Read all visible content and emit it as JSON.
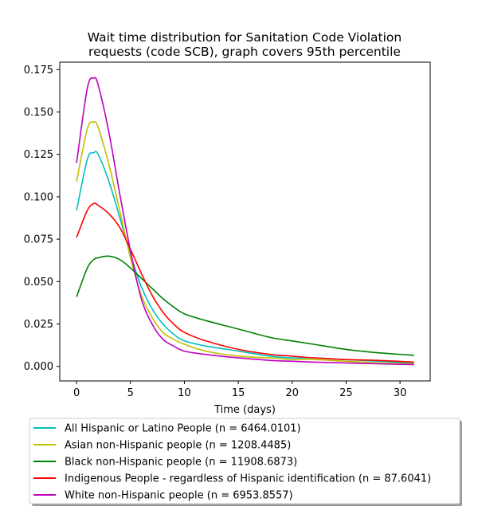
{
  "chart_data": {
    "type": "line",
    "title_lines": [
      "Wait time distribution  for Sanitation Code Violation",
      "requests (code SCB), graph covers 95th percentile"
    ],
    "xlabel": "Time (days)",
    "ylabel": "",
    "xlim": [
      -1.56,
      32.8
    ],
    "ylim": [
      -0.0086,
      0.1794
    ],
    "x_ticks": [
      0,
      5,
      10,
      15,
      20,
      25,
      30
    ],
    "x_tick_labels": [
      "0",
      "5",
      "10",
      "15",
      "20",
      "25",
      "30"
    ],
    "y_ticks": [
      0.0,
      0.025,
      0.05,
      0.075,
      0.1,
      0.125,
      0.15,
      0.175
    ],
    "y_tick_labels": [
      "0.000",
      "0.025",
      "0.050",
      "0.075",
      "0.100",
      "0.125",
      "0.150",
      "0.175"
    ],
    "grid": false,
    "legend_position": "below",
    "x": [
      0,
      1,
      1.6,
      2,
      3,
      4,
      5,
      6,
      7,
      8,
      9,
      10,
      12,
      15,
      18,
      20,
      22,
      25,
      28,
      31.3
    ],
    "series": [
      {
        "name": "All Hispanic or Latino People (n = 6464.0101)",
        "color": "#00bfbf",
        "values": [
          0.092,
          0.122,
          0.126,
          0.125,
          0.109,
          0.088,
          0.066,
          0.047,
          0.034,
          0.025,
          0.019,
          0.015,
          0.012,
          0.009,
          0.006,
          0.005,
          0.005,
          0.004,
          0.003,
          0.002
        ]
      },
      {
        "name": "Asian non-Hispanic people (n = 1208.4485)",
        "color": "#bfbf00",
        "values": [
          0.109,
          0.14,
          0.144,
          0.141,
          0.119,
          0.092,
          0.064,
          0.042,
          0.029,
          0.02,
          0.016,
          0.013,
          0.009,
          0.006,
          0.005,
          0.004,
          0.004,
          0.003,
          0.002,
          0.0015
        ]
      },
      {
        "name": "Black non-Hispanic people (n = 11908.6873)",
        "color": "#008000",
        "values": [
          0.041,
          0.058,
          0.063,
          0.064,
          0.065,
          0.063,
          0.058,
          0.052,
          0.046,
          0.04,
          0.035,
          0.031,
          0.027,
          0.022,
          0.017,
          0.015,
          0.013,
          0.01,
          0.008,
          0.0065
        ]
      },
      {
        "name": "Indigenous People - regardless of Hispanic identification (n = 87.6041)",
        "color": "#ff0000",
        "values": [
          0.076,
          0.092,
          0.096,
          0.095,
          0.09,
          0.082,
          0.069,
          0.055,
          0.042,
          0.032,
          0.025,
          0.02,
          0.015,
          0.01,
          0.007,
          0.006,
          0.005,
          0.004,
          0.0035,
          0.0025
        ]
      },
      {
        "name": "White non-Hispanic people (n = 6953.8557)",
        "color": "#bf00bf",
        "values": [
          0.12,
          0.164,
          0.17,
          0.166,
          0.138,
          0.102,
          0.068,
          0.04,
          0.025,
          0.016,
          0.012,
          0.009,
          0.007,
          0.005,
          0.0035,
          0.003,
          0.0025,
          0.002,
          0.0015,
          0.001
        ]
      }
    ]
  }
}
